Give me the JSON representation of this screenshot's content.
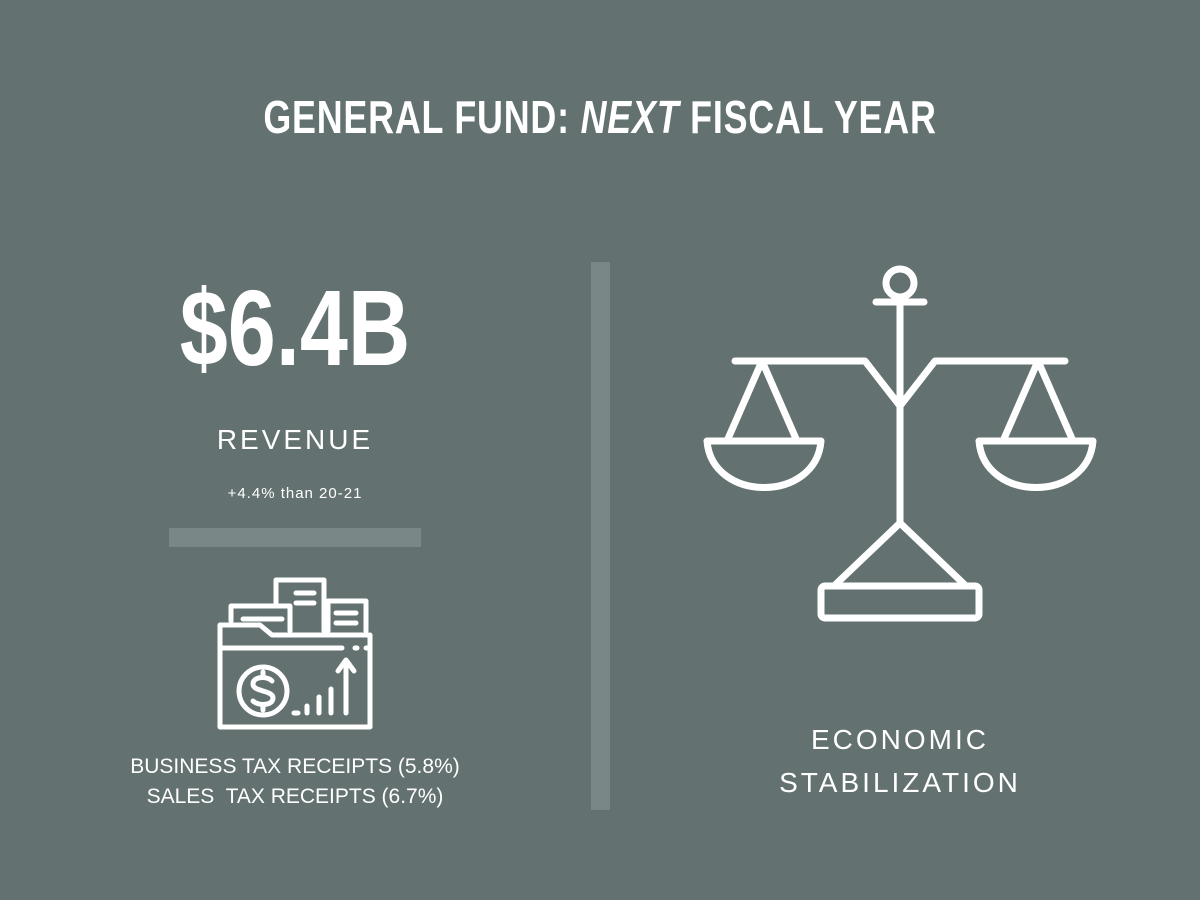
{
  "title": {
    "before": "GENERAL FUND: ",
    "emphasis": "NEXT",
    "after": " FISCAL YEAR"
  },
  "revenue": {
    "amount": "$6.4B",
    "label": "REVENUE",
    "change_note": "+4.4% than 20-21"
  },
  "receipts": {
    "line1": "BUSINESS TAX RECEIPTS (5.8%)",
    "line2": "SALES  TAX RECEIPTS (6.7%)"
  },
  "stabilization": {
    "line1": "ECONOMIC",
    "line2": "STABILIZATION"
  },
  "icons": {
    "left": "folder-dollar-chart-icon",
    "right": "balance-scale-icon"
  },
  "colors": {
    "background": "#637170",
    "divider": "#7a8787",
    "text": "#ffffff"
  }
}
